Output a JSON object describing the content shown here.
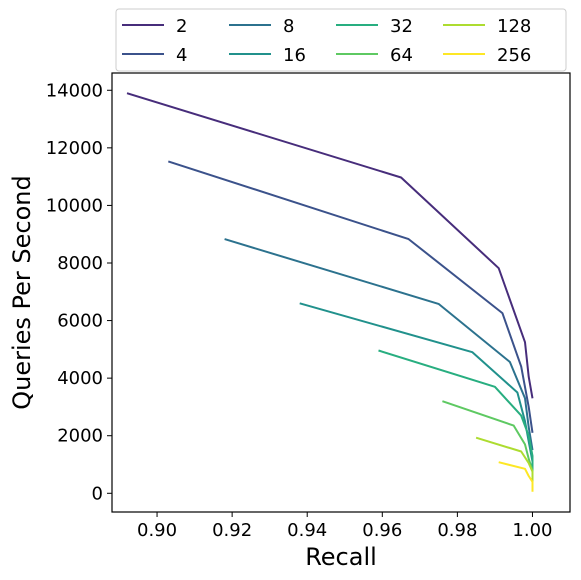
{
  "chart_data": {
    "type": "line",
    "xlabel": "Recall",
    "ylabel": "Queries Per Second",
    "xlim": [
      0.888,
      1.01
    ],
    "ylim": [
      -650,
      14600
    ],
    "xticks": [
      "0.90",
      "0.92",
      "0.94",
      "0.96",
      "0.98",
      "1.00"
    ],
    "yticks": [
      "0",
      "2000",
      "4000",
      "6000",
      "8000",
      "10000",
      "12000",
      "14000"
    ],
    "grid": false,
    "legend_placement": "top, above plot (4 columns)",
    "series": [
      {
        "name": "2",
        "color": "#472d7b",
        "points": [
          [
            0.892,
            13900
          ],
          [
            0.965,
            10970
          ],
          [
            0.991,
            7820
          ],
          [
            0.998,
            5250
          ],
          [
            0.999,
            4050
          ],
          [
            1.0,
            3300
          ]
        ]
      },
      {
        "name": "4",
        "color": "#3b528b",
        "points": [
          [
            0.903,
            11530
          ],
          [
            0.967,
            8830
          ],
          [
            0.992,
            6260
          ],
          [
            0.997,
            4400
          ],
          [
            0.999,
            3000
          ],
          [
            1.0,
            2100
          ]
        ]
      },
      {
        "name": "8",
        "color": "#2c728e",
        "points": [
          [
            0.918,
            8830
          ],
          [
            0.975,
            6580
          ],
          [
            0.994,
            4560
          ],
          [
            0.998,
            3300
          ],
          [
            0.999,
            2300
          ],
          [
            1.0,
            1500
          ]
        ]
      },
      {
        "name": "16",
        "color": "#21918c",
        "points": [
          [
            0.938,
            6600
          ],
          [
            0.984,
            4900
          ],
          [
            0.996,
            3500
          ],
          [
            0.998,
            2500
          ],
          [
            0.999,
            1800
          ],
          [
            1.0,
            1100
          ]
        ]
      },
      {
        "name": "32",
        "color": "#28ae80",
        "points": [
          [
            0.959,
            4960
          ],
          [
            0.99,
            3700
          ],
          [
            0.997,
            2700
          ],
          [
            0.999,
            2000
          ],
          [
            1.0,
            1300
          ],
          [
            1.0,
            700
          ]
        ]
      },
      {
        "name": "64",
        "color": "#5ec962",
        "points": [
          [
            0.976,
            3200
          ],
          [
            0.995,
            2350
          ],
          [
            0.998,
            1700
          ],
          [
            0.999,
            1200
          ],
          [
            1.0,
            800
          ],
          [
            1.0,
            400
          ]
        ]
      },
      {
        "name": "128",
        "color": "#addc30",
        "points": [
          [
            0.985,
            1930
          ],
          [
            0.997,
            1450
          ],
          [
            0.999,
            1050
          ],
          [
            1.0,
            750
          ],
          [
            1.0,
            500
          ],
          [
            1.0,
            250
          ]
        ]
      },
      {
        "name": "256",
        "color": "#fde725",
        "points": [
          [
            0.991,
            1080
          ],
          [
            0.998,
            850
          ],
          [
            0.999,
            600
          ],
          [
            1.0,
            400
          ],
          [
            1.0,
            200
          ],
          [
            1.0,
            50
          ]
        ]
      }
    ]
  }
}
